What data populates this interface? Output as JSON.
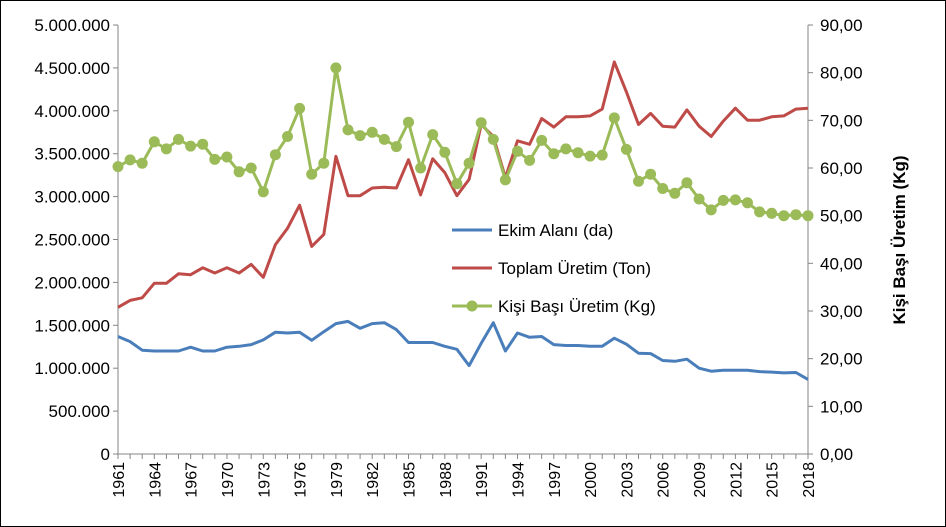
{
  "chart_data": {
    "type": "line",
    "title": "",
    "xlabel": "",
    "ylabel_left": "",
    "ylabel_right": "Kişi Başı Üretim (Kg)",
    "x": [
      1961,
      1962,
      1963,
      1964,
      1965,
      1966,
      1967,
      1968,
      1969,
      1970,
      1971,
      1972,
      1973,
      1974,
      1975,
      1976,
      1977,
      1978,
      1979,
      1980,
      1981,
      1982,
      1983,
      1984,
      1985,
      1986,
      1987,
      1988,
      1989,
      1990,
      1991,
      1992,
      1993,
      1994,
      1995,
      1996,
      1997,
      1998,
      1999,
      2000,
      2001,
      2002,
      2003,
      2004,
      2005,
      2006,
      2007,
      2008,
      2009,
      2010,
      2011,
      2012,
      2013,
      2014,
      2015,
      2016,
      2017,
      2018
    ],
    "x_tick_labels": [
      "1961",
      "1964",
      "1967",
      "1970",
      "1973",
      "1976",
      "1979",
      "1982",
      "1985",
      "1988",
      "1991",
      "1994",
      "1997",
      "2000",
      "2003",
      "2006",
      "2009",
      "2012",
      "2015",
      "2018"
    ],
    "y_left_ticks": [
      "0",
      "500.000",
      "1.000.000",
      "1.500.000",
      "2.000.000",
      "2.500.000",
      "3.000.000",
      "3.500.000",
      "4.000.000",
      "4.500.000",
      "5.000.000"
    ],
    "y_right_ticks": [
      "0,00",
      "10,00",
      "20,00",
      "30,00",
      "40,00",
      "50,00",
      "60,00",
      "70,00",
      "80,00",
      "90,00"
    ],
    "ylim_left": [
      0,
      5000000
    ],
    "ylim_right": [
      0,
      90
    ],
    "grid": false,
    "legend_position": "center-right",
    "series": [
      {
        "name": "Ekim Alanı (da)",
        "axis": "left",
        "color": "#4a7ebb",
        "marker": "none",
        "values": [
          1370000,
          1310000,
          1210000,
          1200000,
          1200000,
          1200000,
          1245000,
          1200000,
          1200000,
          1245000,
          1255000,
          1275000,
          1330000,
          1420000,
          1410000,
          1420000,
          1325000,
          1425000,
          1520000,
          1545000,
          1465000,
          1520000,
          1530000,
          1450000,
          1300000,
          1300000,
          1300000,
          1255000,
          1220000,
          1030000,
          1290000,
          1530000,
          1200000,
          1410000,
          1360000,
          1370000,
          1275000,
          1265000,
          1265000,
          1255000,
          1255000,
          1350000,
          1280000,
          1175000,
          1170000,
          1090000,
          1080000,
          1105000,
          1000000,
          965000,
          975000,
          975000,
          975000,
          960000,
          955000,
          945000,
          950000,
          870000
        ]
      },
      {
        "name": "Toplam Üretim (Ton)",
        "axis": "left",
        "color": "#be4b48",
        "marker": "none",
        "values": [
          1710000,
          1790000,
          1820000,
          1990000,
          1990000,
          2100000,
          2090000,
          2170000,
          2110000,
          2170000,
          2110000,
          2210000,
          2060000,
          2440000,
          2630000,
          2900000,
          2420000,
          2560000,
          3470000,
          3010000,
          3010000,
          3100000,
          3110000,
          3100000,
          3430000,
          3020000,
          3440000,
          3280000,
          3010000,
          3200000,
          3840000,
          3700000,
          3220000,
          3650000,
          3610000,
          3910000,
          3810000,
          3930000,
          3930000,
          3940000,
          4020000,
          4570000,
          4220000,
          3840000,
          3970000,
          3820000,
          3810000,
          4010000,
          3820000,
          3700000,
          3880000,
          4030000,
          3890000,
          3890000,
          3930000,
          3940000,
          4020000,
          4030000
        ]
      },
      {
        "name": "Kişi Başı Üretim (Kg)",
        "axis": "right",
        "color": "#9bbb59",
        "marker": "circle",
        "values": [
          60.3,
          61.7,
          61.0,
          65.5,
          64.0,
          66.0,
          64.6,
          65.0,
          61.8,
          62.3,
          59.2,
          60.0,
          55.0,
          62.8,
          66.6,
          72.5,
          58.7,
          61.0,
          81.0,
          68.0,
          66.8,
          67.5,
          66.0,
          64.5,
          69.6,
          60.0,
          67.0,
          63.3,
          56.7,
          61.0,
          69.5,
          66.0,
          57.5,
          63.5,
          61.6,
          65.8,
          63.0,
          64.0,
          63.2,
          62.5,
          62.7,
          70.5,
          63.9,
          57.2,
          58.7,
          55.7,
          54.7,
          56.9,
          53.5,
          51.2,
          53.2,
          53.3,
          52.7,
          50.8,
          50.5,
          50.0,
          50.2,
          50.0
        ]
      }
    ]
  }
}
